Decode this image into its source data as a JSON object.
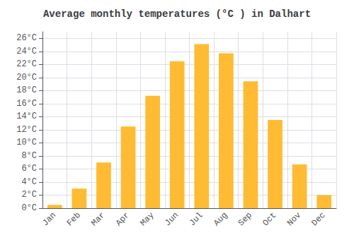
{
  "chart_data": {
    "type": "bar",
    "title": "Average monthly temperatures (°C ) in Dalhart",
    "categories": [
      "Jan",
      "Feb",
      "Mar",
      "Apr",
      "May",
      "Jun",
      "Jul",
      "Aug",
      "Sep",
      "Oct",
      "Nov",
      "Dec"
    ],
    "values": [
      0.5,
      3.0,
      7.0,
      12.5,
      17.2,
      22.5,
      25.1,
      23.7,
      19.4,
      13.5,
      6.7,
      2.0
    ],
    "color": "#FFBB33",
    "ylim": [
      0,
      27
    ],
    "yticks": [
      {
        "value": 0,
        "label": "0°C"
      },
      {
        "value": 2,
        "label": "2°C"
      },
      {
        "value": 4,
        "label": "4°C"
      },
      {
        "value": 6,
        "label": "6°C"
      },
      {
        "value": 8,
        "label": "8°C"
      },
      {
        "value": 10,
        "label": "10°C"
      },
      {
        "value": 12,
        "label": "12°C"
      },
      {
        "value": 14,
        "label": "14°C"
      },
      {
        "value": 16,
        "label": "16°C"
      },
      {
        "value": 18,
        "label": "18°C"
      },
      {
        "value": 20,
        "label": "20°C"
      },
      {
        "value": 22,
        "label": "22°C"
      },
      {
        "value": 24,
        "label": "24°C"
      },
      {
        "value": 26,
        "label": "26°C"
      }
    ],
    "grid": true
  }
}
